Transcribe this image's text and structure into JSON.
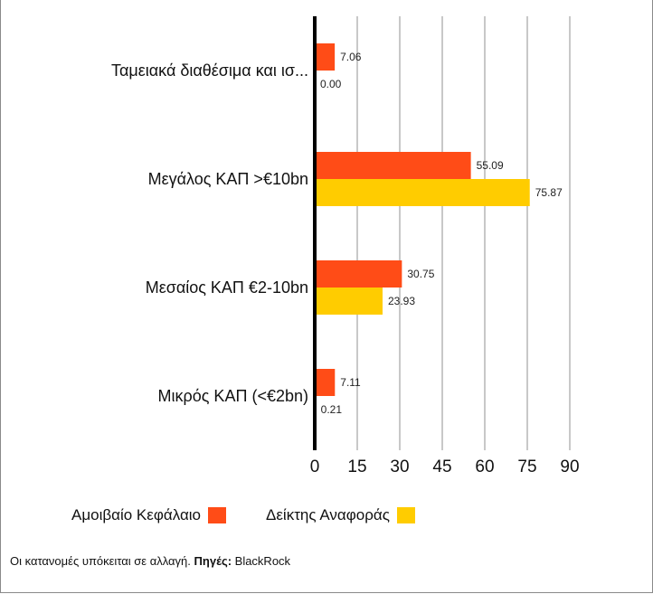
{
  "chart_data": {
    "type": "bar",
    "orientation": "horizontal",
    "categories": [
      "Ταμειακά διαθέσιμα και ισ...",
      "Μεγάλος ΚΑΠ >€10bn",
      "Μεσαίος ΚΑΠ €2-10bn",
      "Μικρός ΚΑΠ (<€2bn)"
    ],
    "series": [
      {
        "name": "Αμοιβαίο Κεφάλαιο",
        "color": "#FF4C17",
        "values": [
          7.06,
          55.09,
          30.75,
          7.11
        ],
        "labels": [
          "7.06",
          "55.09",
          "30.75",
          "7.11"
        ]
      },
      {
        "name": "Δείκτης Αναφοράς",
        "color": "#FFCC00",
        "values": [
          0.0,
          75.87,
          23.93,
          0.21
        ],
        "labels": [
          "0.00",
          "75.87",
          "23.93",
          "0.21"
        ]
      }
    ],
    "xlim": [
      0,
      90
    ],
    "xticks": [
      "0",
      "15",
      "30",
      "45",
      "60",
      "75",
      "90"
    ],
    "xtick_values": [
      0,
      15,
      30,
      45,
      60,
      75,
      90
    ],
    "grid": true,
    "legend_position": "bottom-left"
  },
  "legend": {
    "fund_label": "Αμοιβαίο Κεφάλαιο",
    "benchmark_label": "Δείκτης Αναφοράς"
  },
  "footer": {
    "note": "Οι κατανομές υπόκειται σε αλλαγή. ",
    "source_label": "Πηγές:",
    "source_value": " BlackRock"
  }
}
